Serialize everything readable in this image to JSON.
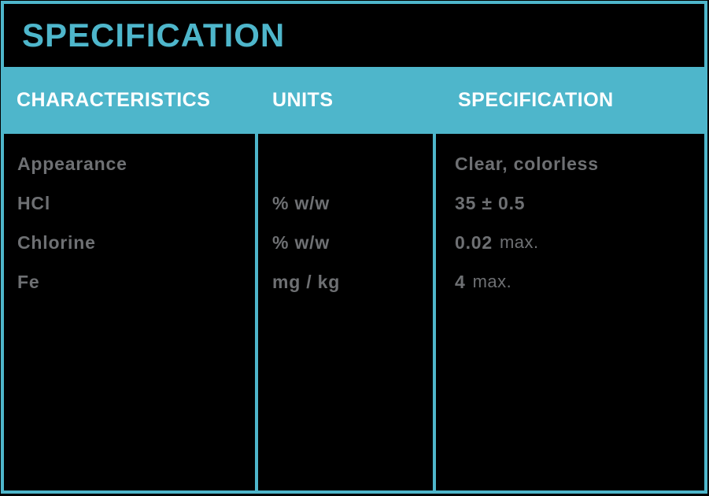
{
  "page": {
    "title": "SPECIFICATION"
  },
  "table": {
    "headers": {
      "characteristics": "CHARACTERISTICS",
      "units": "UNITS",
      "specification": "SPECIFICATION"
    },
    "rows": [
      {
        "characteristic": "Appearance",
        "unit": "",
        "spec_value": "Clear, colorless",
        "spec_suffix": ""
      },
      {
        "characteristic": "HCl",
        "unit": "% w/w",
        "spec_value": "35 ± 0.5",
        "spec_suffix": ""
      },
      {
        "characteristic": "Chlorine",
        "unit": "% w/w",
        "spec_value": "0.02",
        "spec_suffix": "max."
      },
      {
        "characteristic": "Fe",
        "unit": "mg / kg",
        "spec_value": "4",
        "spec_suffix": "max."
      }
    ]
  },
  "colors": {
    "accent": "#4EB6CB",
    "header_text": "#FFFFFF",
    "body_text": "#6E7073",
    "background": "#000000"
  }
}
